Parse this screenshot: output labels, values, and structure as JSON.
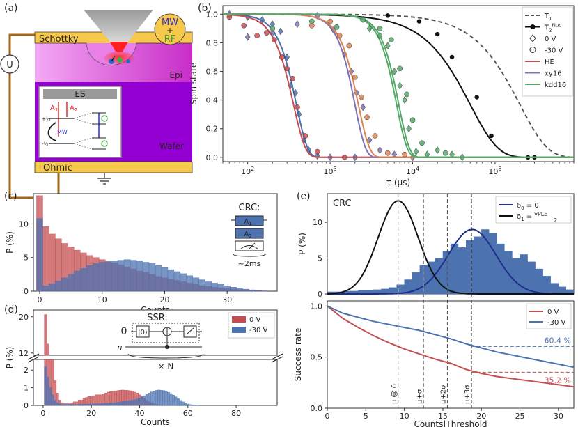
{
  "panel_labels": {
    "a": "(a)",
    "b": "(b)",
    "c": "(c)",
    "d": "(d)",
    "e": "(e)"
  },
  "colors": {
    "red": "#c44e52",
    "blue": "#4c72b0",
    "orange": "#dd8452",
    "green": "#55a868",
    "purple": "#8172b3",
    "navy": "#1f2e8a",
    "gold": "#f6c84c",
    "wafer": "#9400d3",
    "magenta": "#d12fd1"
  },
  "schematic": {
    "schottky": "Schottky",
    "u": "U",
    "mw_rf_top": "MW",
    "mw_rf_plus": "+",
    "mw_rf_bottom": "RF",
    "epi": "Epi",
    "wafer": "Wafer",
    "ohmic": "Ohmic",
    "es": "ES",
    "a1": "A",
    "a1_sub": "1",
    "a2": "A",
    "a2_sub": "2",
    "mw": "MW",
    "plus_half": "+½",
    "minus_half": "-½"
  },
  "chart_data": [
    {
      "id": "b",
      "type": "line",
      "xlabel": "τ (μs)",
      "ylabel": "Spin state",
      "xscale": "log",
      "xlim": [
        50,
        900000
      ],
      "ylim": [
        -0.03,
        1.06
      ],
      "xticks": [
        "10",
        "10",
        "10",
        "10",
        "10"
      ],
      "xtick_exponents": [
        "2",
        "3",
        "4",
        "5",
        ""
      ],
      "yticks": [
        "0.0",
        "0.2",
        "0.4",
        "0.6",
        "0.8",
        "1.0"
      ],
      "legend_placement": "top-right",
      "legend": [
        "T",
        "T",
        "0 V",
        "-30 V",
        "HE",
        "xy16",
        "kdd16"
      ],
      "legend_sub": [
        "1",
        "2",
        "",
        "",
        "",
        "",
        ""
      ],
      "legend_sup": [
        "",
        "Nuc",
        "",
        "",
        "",
        "",
        ""
      ],
      "series": [
        {
          "name": "T1",
          "kind": "dashed",
          "T": 200000,
          "n": 1.3
        },
        {
          "name": "T2 Nuc",
          "kind": "black",
          "T": 50000,
          "n": 1.3,
          "points": [
            [
              60000,
              0.42
            ],
            [
              90000,
              0.15
            ],
            [
              20000,
              0.86
            ],
            [
              30000,
              0.7
            ],
            [
              12000,
              0.95
            ],
            [
              5000,
              0.99
            ],
            [
              250000,
              0.0
            ],
            [
              300000,
              0.0
            ]
          ]
        },
        {
          "name": "HE 0 V",
          "kind": "blue",
          "T": 390,
          "n": 3.2,
          "points": [
            [
              60,
              1.0
            ],
            [
              100,
              0.98
            ],
            [
              150,
              0.96
            ],
            [
              200,
              0.93
            ],
            [
              250,
              0.88
            ],
            [
              300,
              0.7
            ],
            [
              330,
              0.5
            ],
            [
              380,
              0.45
            ],
            [
              420,
              0.3
            ],
            [
              480,
              0.12
            ],
            [
              550,
              0.05
            ],
            [
              700,
              0.01
            ],
            [
              1000,
              0.0
            ],
            [
              2000,
              0.0
            ]
          ]
        },
        {
          "name": "HE -30 V",
          "kind": "red",
          "T": 360,
          "n": 3.0,
          "points": [
            [
              60,
              0.98
            ],
            [
              90,
              0.92
            ],
            [
              130,
              0.85
            ],
            [
              170,
              0.87
            ],
            [
              210,
              0.82
            ],
            [
              260,
              0.7
            ],
            [
              300,
              0.62
            ],
            [
              350,
              0.55
            ],
            [
              400,
              0.35
            ],
            [
              500,
              0.15
            ],
            [
              700,
              0.04
            ],
            [
              1500,
              0.0
            ]
          ]
        },
        {
          "name": "xy16 0 V",
          "kind": "purple",
          "T": 2000,
          "n": 3.4,
          "points": [
            [
              100,
              0.84
            ],
            [
              200,
              0.87
            ],
            [
              400,
              0.93
            ],
            [
              700,
              0.99
            ],
            [
              1100,
              0.89
            ],
            [
              1500,
              0.72
            ],
            [
              1800,
              0.6
            ],
            [
              2100,
              0.45
            ],
            [
              2500,
              0.35
            ],
            [
              3000,
              0.12
            ],
            [
              4000,
              0.05
            ],
            [
              6000,
              0.02
            ],
            [
              10000,
              0.0
            ]
          ]
        },
        {
          "name": "xy16 -30 V",
          "kind": "orange",
          "T": 2200,
          "n": 3.2,
          "points": [
            [
              600,
              0.92
            ],
            [
              1000,
              0.95
            ],
            [
              1300,
              0.85
            ],
            [
              1700,
              0.78
            ],
            [
              2000,
              0.56
            ],
            [
              2400,
              0.42
            ],
            [
              2800,
              0.28
            ],
            [
              3500,
              0.15
            ],
            [
              5000,
              0.03
            ],
            [
              8000,
              0.02
            ]
          ]
        },
        {
          "name": "kdd16 0 V",
          "kind": "green",
          "T": 6400,
          "n": 3.4,
          "points": [
            [
              3000,
              0.9
            ],
            [
              4000,
              0.85
            ],
            [
              5000,
              0.78
            ],
            [
              6000,
              0.6
            ],
            [
              7000,
              0.5
            ],
            [
              8000,
              0.4
            ],
            [
              9000,
              0.2
            ],
            [
              11000,
              0.04
            ],
            [
              15000,
              0.02
            ],
            [
              20000,
              0.05
            ],
            [
              30000,
              0.02
            ],
            [
              40000,
              0.0
            ]
          ]
        },
        {
          "name": "kdd16 -30 V",
          "kind": "green",
          "T": 6800,
          "n": 3.4,
          "points": [
            [
              200,
              0.9
            ],
            [
              600,
              0.95
            ],
            [
              1200,
              0.91
            ],
            [
              2500,
              0.96
            ],
            [
              4000,
              0.9
            ],
            [
              5500,
              0.82
            ],
            [
              7000,
              0.62
            ],
            [
              8500,
              0.44
            ],
            [
              10000,
              0.26
            ],
            [
              13000,
              0.1
            ],
            [
              25000,
              0.03
            ]
          ]
        }
      ]
    },
    {
      "id": "c",
      "type": "bar",
      "xlabel": "Counts",
      "ylabel": "P (%)",
      "xlim": [
        -1,
        38
      ],
      "ylim": [
        0,
        14.5
      ],
      "xticks": [
        "0",
        "10",
        "20",
        "30"
      ],
      "yticks": [
        "0",
        "5",
        "10"
      ],
      "inset": {
        "title": "CRC:",
        "gate1": "A",
        "gate1_sub": "1",
        "gate2": "A",
        "gate2_sub": "2",
        "duration": "~2ms"
      },
      "series": [
        {
          "name": "0 V",
          "color": "red",
          "values": [
            14.2,
            9.6,
            8.5,
            7.8,
            7.1,
            6.6,
            6.1,
            5.7,
            5.3,
            5.0,
            4.7,
            4.4,
            4.2,
            3.9,
            3.6,
            3.3,
            3.0,
            2.8,
            2.5,
            2.2,
            2.0,
            1.8,
            1.6,
            1.4,
            1.2,
            1.0,
            0.8,
            0.7,
            0.6,
            0.5,
            0.4,
            0.3,
            0.25,
            0.2,
            0.15,
            0.1,
            0.05
          ]
        },
        {
          "name": "-30 V",
          "color": "blue",
          "values": [
            10.8,
            0.8,
            1.1,
            1.5,
            2.0,
            2.5,
            3.0,
            3.4,
            3.8,
            4.1,
            4.3,
            4.4,
            4.5,
            4.6,
            4.7,
            4.6,
            4.5,
            4.3,
            4.1,
            3.8,
            3.5,
            3.2,
            2.9,
            2.6,
            2.3,
            2.0,
            1.7,
            1.4,
            1.2,
            1.0,
            0.8,
            0.6,
            0.45,
            0.3,
            0.2,
            0.1,
            0.05
          ]
        }
      ]
    },
    {
      "id": "d",
      "type": "bar",
      "xlabel": "Counts",
      "ylabel": "P (%)",
      "xlim": [
        -4,
        97
      ],
      "broken_y": true,
      "ylim_top": [
        11.5,
        21.5
      ],
      "ylim_bottom": [
        0,
        2.6
      ],
      "yticks_top": [
        "12",
        "20"
      ],
      "yticks_bottom": [
        "0",
        "1",
        "2"
      ],
      "xticks": [
        "0",
        "20",
        "40",
        "60",
        "80"
      ],
      "legend_placement": "top-right",
      "legend": [
        "0 V",
        "-30 V"
      ],
      "inset": {
        "title": "SSR:",
        "ket": "|0⟩",
        "zero": "0",
        "n": "n",
        "repeat": "× N"
      },
      "series": [
        {
          "name": "0 V",
          "color": "red",
          "values": [
            0.0,
            20.5,
            14.0,
            7.0,
            3.2,
            1.4,
            0.7,
            0.3,
            0.12,
            0.1,
            0.1,
            0.1,
            0.15,
            0.2,
            0.2,
            0.3,
            0.3,
            0.4,
            0.45,
            0.5,
            0.5,
            0.55,
            0.6,
            0.6,
            0.6,
            0.65,
            0.7,
            0.75,
            0.78,
            0.8,
            0.82,
            0.84,
            0.86,
            0.87,
            0.86,
            0.85,
            0.83,
            0.8,
            0.75,
            0.7,
            0.6,
            0.5,
            0.4,
            0.3,
            0.2,
            0.15,
            0.1,
            0.05,
            0.03,
            0.02,
            0.01,
            0.0,
            0.0,
            0.0,
            0.0,
            0.0
          ]
        },
        {
          "name": "-30 V",
          "color": "blue",
          "values": [
            0.0,
            2.2,
            1.6,
            1.0,
            0.6,
            0.3,
            0.15,
            0.1,
            0.05,
            0.05,
            0.05,
            0.05,
            0.05,
            0.05,
            0.05,
            0.06,
            0.06,
            0.07,
            0.07,
            0.08,
            0.08,
            0.09,
            0.1,
            0.1,
            0.1,
            0.12,
            0.12,
            0.13,
            0.14,
            0.15,
            0.16,
            0.18,
            0.2,
            0.22,
            0.24,
            0.26,
            0.28,
            0.3,
            0.33,
            0.37,
            0.42,
            0.48,
            0.55,
            0.62,
            0.7,
            0.76,
            0.81,
            0.85,
            0.87,
            0.86,
            0.84,
            0.8,
            0.74,
            0.67,
            0.58,
            0.48,
            0.38,
            0.28,
            0.2,
            0.13,
            0.08,
            0.05,
            0.03,
            0.02,
            0.01,
            0.0,
            0.0,
            0.0,
            0.0,
            0.0,
            0.0,
            0.0,
            0.0,
            0.0,
            0.0,
            0.0,
            0.0,
            0.0,
            0.0,
            0.0,
            0.0,
            0.0,
            0.0,
            0.0,
            0.0,
            0.0,
            0.0,
            0.0,
            0.0,
            0.0,
            0.0
          ]
        }
      ]
    },
    {
      "id": "e-top",
      "type": "bar",
      "ylabel": "P (%)",
      "inset_title": "CRC",
      "xlim": [
        0,
        32
      ],
      "ylim": [
        0,
        14
      ],
      "yticks": [
        "0",
        "5",
        "10"
      ],
      "legend_placement": "top-right",
      "legend": [
        "δ = 0",
        "δ ="
      ],
      "legend_sub": [
        "0",
        "1"
      ],
      "legend_frac": {
        "num": "γ",
        "num_sub": "PLE",
        "den": "2"
      },
      "gaussians": [
        {
          "name": "δ0 = 0",
          "color": "navy",
          "mu": 18.8,
          "sigma": 3.1,
          "amp": 9.0
        },
        {
          "name": "δ1",
          "color": "black",
          "mu": 9.2,
          "sigma": 2.6,
          "amp": 13.0
        }
      ],
      "values": [
        0.3,
        0.3,
        0.4,
        0.4,
        0.5,
        0.5,
        0.6,
        0.7,
        0.9,
        1.3,
        2.0,
        3.0,
        4.0,
        4.5,
        5.0,
        6.0,
        7.0,
        6.5,
        7.5,
        8.0,
        9.0,
        8.5,
        7.0,
        6.0,
        5.0,
        5.5,
        4.5,
        3.5,
        2.5,
        1.5,
        1.0,
        0.6
      ]
    },
    {
      "id": "e-bottom",
      "type": "line",
      "xlabel": "Counts|Threshold",
      "ylabel": "Success rate",
      "xlim": [
        0,
        32
      ],
      "ylim": [
        0,
        1.05
      ],
      "xticks": [
        "0",
        "5",
        "10",
        "15",
        "20",
        "25",
        "30"
      ],
      "yticks": [
        "0.0",
        "0.5",
        "1.0"
      ],
      "legend_placement": "top-right",
      "legend": [
        "0 V",
        "-30 V"
      ],
      "annotations": [
        "60.4 %",
        "35.2 %"
      ],
      "threshold_labels": [
        "μ @ δ",
        "μ+σ",
        "μ+2σ",
        "μ+3σ"
      ],
      "threshold_x": [
        9.2,
        12.5,
        15.6,
        18.7
      ],
      "series": [
        {
          "name": "0 V",
          "color": "red",
          "x": [
            0,
            2,
            4,
            6,
            8,
            10,
            12,
            14,
            16,
            18,
            20,
            22,
            24,
            26,
            28,
            30,
            32
          ],
          "y": [
            1.0,
            0.88,
            0.79,
            0.71,
            0.64,
            0.58,
            0.53,
            0.48,
            0.44,
            0.38,
            0.34,
            0.31,
            0.29,
            0.27,
            0.25,
            0.23,
            0.21
          ]
        },
        {
          "name": "-30 V",
          "color": "blue",
          "x": [
            0,
            2,
            4,
            6,
            8,
            10,
            12,
            14,
            16,
            18,
            20,
            22,
            24,
            26,
            28,
            30,
            32
          ],
          "y": [
            1.0,
            0.93,
            0.89,
            0.85,
            0.82,
            0.79,
            0.76,
            0.72,
            0.68,
            0.63,
            0.59,
            0.55,
            0.52,
            0.49,
            0.46,
            0.43,
            0.4
          ]
        }
      ]
    }
  ]
}
